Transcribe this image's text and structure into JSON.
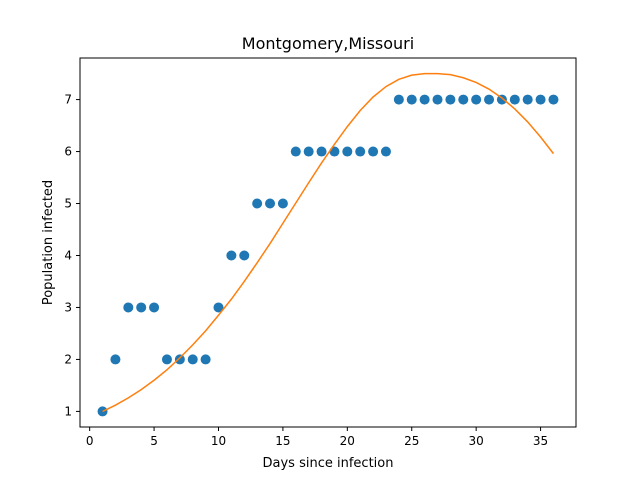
{
  "chart_data": {
    "type": "scatter",
    "title": "Montgomery,Missouri",
    "xlabel": "Days since infection",
    "ylabel": "Population infected",
    "xlim": [
      -0.75,
      37.75
    ],
    "ylim": [
      0.7,
      7.8
    ],
    "xticks": [
      0,
      5,
      10,
      15,
      20,
      25,
      30,
      35
    ],
    "yticks": [
      1,
      2,
      3,
      4,
      5,
      6,
      7
    ],
    "grid": false,
    "colors": {
      "points": "#1f77b4",
      "fit": "#ff7f0e"
    },
    "series": [
      {
        "type": "scatter",
        "x": [
          1,
          2,
          3,
          4,
          5,
          6,
          7,
          8,
          9,
          10,
          11,
          12,
          13,
          14,
          15,
          16,
          17,
          18,
          19,
          20,
          21,
          22,
          23,
          24,
          25,
          26,
          27,
          28,
          29,
          30,
          31,
          32,
          33,
          34,
          35,
          36
        ],
        "y": [
          1,
          2,
          3,
          3,
          3,
          2,
          2,
          2,
          2,
          3,
          4,
          4,
          5,
          5,
          5,
          6,
          6,
          6,
          6,
          6,
          6,
          6,
          6,
          7,
          7,
          7,
          7,
          7,
          7,
          7,
          7,
          7,
          7,
          7,
          7,
          7
        ]
      },
      {
        "type": "line",
        "x": [
          1,
          2,
          3,
          4,
          5,
          6,
          7,
          8,
          9,
          10,
          11,
          12,
          13,
          14,
          15,
          16,
          17,
          18,
          19,
          20,
          21,
          22,
          23,
          24,
          25,
          26,
          27,
          28,
          29,
          30,
          31,
          32,
          33,
          34,
          35,
          36
        ],
        "y": [
          1.0,
          1.12,
          1.26,
          1.42,
          1.6,
          1.8,
          2.03,
          2.28,
          2.55,
          2.85,
          3.16,
          3.5,
          3.86,
          4.23,
          4.62,
          5.01,
          5.4,
          5.78,
          6.14,
          6.48,
          6.79,
          7.05,
          7.25,
          7.39,
          7.47,
          7.5,
          7.5,
          7.48,
          7.42,
          7.33,
          7.2,
          7.03,
          6.82,
          6.57,
          6.28,
          5.96
        ]
      }
    ]
  }
}
